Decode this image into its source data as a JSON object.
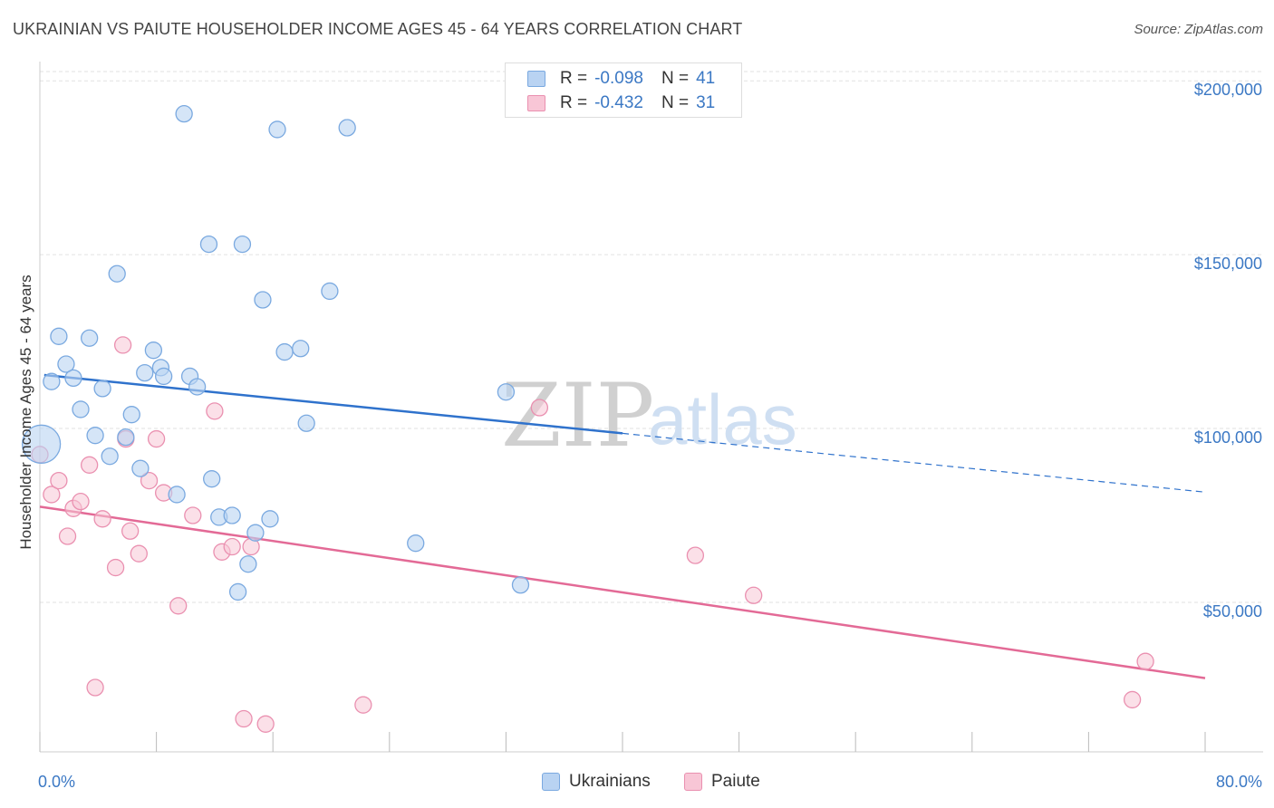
{
  "title": "UKRAINIAN VS PAIUTE HOUSEHOLDER INCOME AGES 45 - 64 YEARS CORRELATION CHART",
  "source": "Source: ZipAtlas.com",
  "watermark": {
    "zip": "ZIP",
    "atlas": "atlas"
  },
  "legend": {
    "rows": [
      {
        "r_label": "R =",
        "r_value": "-0.098",
        "n_label": "N =",
        "n_value": "41"
      },
      {
        "r_label": "R =",
        "r_value": "-0.432",
        "n_label": "N =",
        "n_value": "31"
      }
    ]
  },
  "bottom_legend": [
    {
      "label": "Ukrainians"
    },
    {
      "label": "Paiute"
    }
  ],
  "colors": {
    "ukrainians_fill": "#b9d3f2",
    "ukrainians_stroke": "#7aa9e0",
    "ukrainians_line": "#2f72cc",
    "paiute_fill": "#f8c6d6",
    "paiute_stroke": "#ea90b0",
    "paiute_line": "#e36a96",
    "grid": "#e2e2e2",
    "tick_text": "#3b78c4"
  },
  "chart_data": {
    "type": "scatter",
    "xlabel": "",
    "ylabel": "Householder Income Ages 45 - 64 years",
    "xlim": [
      0,
      80
    ],
    "ylim": [
      7000,
      205000
    ],
    "x_tick_labels": [
      {
        "x": 0,
        "label": "0.0%"
      },
      {
        "x": 80,
        "label": "80.0%"
      }
    ],
    "x_minor_ticks": [
      0,
      8,
      16,
      24,
      32,
      40,
      48,
      56,
      64,
      72,
      80
    ],
    "y_ticks": [
      {
        "y": 50000,
        "label": "$50,000"
      },
      {
        "y": 100000,
        "label": "$100,000"
      },
      {
        "y": 150000,
        "label": "$150,000"
      },
      {
        "y": 200000,
        "label": "$200,000"
      }
    ],
    "grid": true,
    "series": [
      {
        "name": "Ukrainians",
        "points": [
          {
            "x": 0.1,
            "y": 95500,
            "big": true
          },
          {
            "x": 0.8,
            "y": 113500
          },
          {
            "x": 1.3,
            "y": 126500
          },
          {
            "x": 1.8,
            "y": 118500
          },
          {
            "x": 2.3,
            "y": 114500
          },
          {
            "x": 2.8,
            "y": 105500
          },
          {
            "x": 3.4,
            "y": 126000
          },
          {
            "x": 3.8,
            "y": 98000
          },
          {
            "x": 4.3,
            "y": 111500
          },
          {
            "x": 4.8,
            "y": 92000
          },
          {
            "x": 5.3,
            "y": 144500
          },
          {
            "x": 5.9,
            "y": 97500
          },
          {
            "x": 6.3,
            "y": 104000
          },
          {
            "x": 6.9,
            "y": 88500
          },
          {
            "x": 7.2,
            "y": 116000
          },
          {
            "x": 7.8,
            "y": 122500
          },
          {
            "x": 8.3,
            "y": 117500
          },
          {
            "x": 8.5,
            "y": 115000
          },
          {
            "x": 9.4,
            "y": 81000
          },
          {
            "x": 9.9,
            "y": 190500
          },
          {
            "x": 10.3,
            "y": 115000
          },
          {
            "x": 10.8,
            "y": 112000
          },
          {
            "x": 11.6,
            "y": 153000
          },
          {
            "x": 11.8,
            "y": 85500
          },
          {
            "x": 12.3,
            "y": 74500
          },
          {
            "x": 13.2,
            "y": 75000
          },
          {
            "x": 13.6,
            "y": 53000
          },
          {
            "x": 13.9,
            "y": 153000
          },
          {
            "x": 14.3,
            "y": 61000
          },
          {
            "x": 14.8,
            "y": 70000
          },
          {
            "x": 15.3,
            "y": 137000
          },
          {
            "x": 15.8,
            "y": 74000
          },
          {
            "x": 16.3,
            "y": 186000
          },
          {
            "x": 16.8,
            "y": 122000
          },
          {
            "x": 17.9,
            "y": 123000
          },
          {
            "x": 18.3,
            "y": 101500
          },
          {
            "x": 19.9,
            "y": 139500
          },
          {
            "x": 21.1,
            "y": 186500
          },
          {
            "x": 25.8,
            "y": 67000
          },
          {
            "x": 32.0,
            "y": 110500
          },
          {
            "x": 33.0,
            "y": 55000
          }
        ],
        "trend": {
          "x_solid": [
            0.3,
            40.0
          ],
          "x_dashed": [
            40.0,
            80.0
          ],
          "y_at_0": 115500,
          "y_at_80": 81700
        }
      },
      {
        "name": "Paiute",
        "points": [
          {
            "x": 0.0,
            "y": 92500
          },
          {
            "x": 0.8,
            "y": 81000
          },
          {
            "x": 1.3,
            "y": 85000
          },
          {
            "x": 1.9,
            "y": 69000
          },
          {
            "x": 2.3,
            "y": 77000
          },
          {
            "x": 2.8,
            "y": 79000
          },
          {
            "x": 3.4,
            "y": 89500
          },
          {
            "x": 3.8,
            "y": 25500
          },
          {
            "x": 4.3,
            "y": 74000
          },
          {
            "x": 5.2,
            "y": 60000
          },
          {
            "x": 5.7,
            "y": 124000
          },
          {
            "x": 5.9,
            "y": 97000
          },
          {
            "x": 6.2,
            "y": 70500
          },
          {
            "x": 6.8,
            "y": 64000
          },
          {
            "x": 7.5,
            "y": 85000
          },
          {
            "x": 8.0,
            "y": 97000
          },
          {
            "x": 8.5,
            "y": 81500
          },
          {
            "x": 9.5,
            "y": 49000
          },
          {
            "x": 10.5,
            "y": 75000
          },
          {
            "x": 12.0,
            "y": 105000
          },
          {
            "x": 12.5,
            "y": 64500
          },
          {
            "x": 13.2,
            "y": 66000
          },
          {
            "x": 14.0,
            "y": 16500
          },
          {
            "x": 14.5,
            "y": 66000
          },
          {
            "x": 15.5,
            "y": 15000
          },
          {
            "x": 22.2,
            "y": 20500
          },
          {
            "x": 34.3,
            "y": 106000
          },
          {
            "x": 45.0,
            "y": 63500
          },
          {
            "x": 49.0,
            "y": 52000
          },
          {
            "x": 75.0,
            "y": 22000
          },
          {
            "x": 75.9,
            "y": 33000
          }
        ],
        "trend": {
          "x_solid": [
            0.0,
            80.0
          ],
          "y_at_0": 77500,
          "y_at_80": 28200
        }
      }
    ]
  }
}
